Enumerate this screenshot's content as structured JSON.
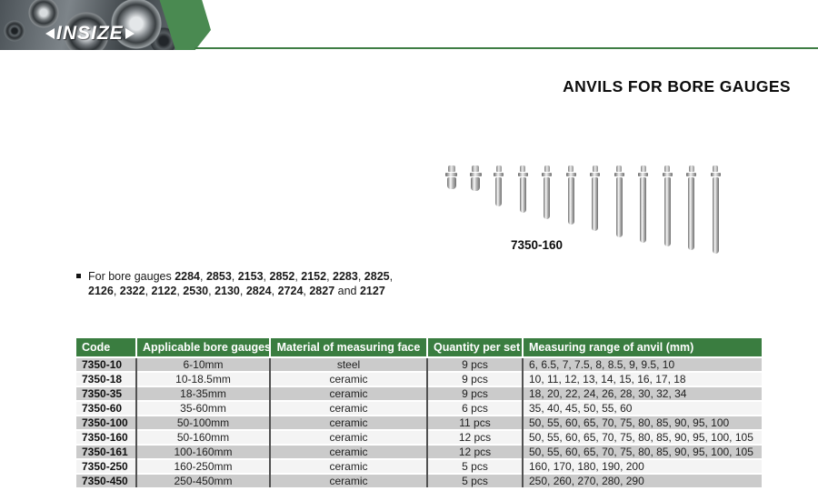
{
  "brand": {
    "logo_text": "INSIZE",
    "green_accent": "#3a7d40",
    "chevron_green": "#4a8a51"
  },
  "page": {
    "title": "ANVILS FOR BORE GAUGES"
  },
  "figure": {
    "label": "7350-160",
    "anvil_heights": [
      26,
      28,
      45,
      52,
      59,
      65,
      72,
      79,
      85,
      89,
      93,
      97
    ]
  },
  "note": {
    "prefix": "For bore gauges",
    "codes": [
      "2284",
      "2853",
      "2153",
      "2852",
      "2152",
      "2283",
      "2825",
      "2126",
      "2322",
      "2122",
      "2530",
      "2130",
      "2824",
      "2724",
      "2827"
    ],
    "conjunction": "and",
    "last_code": "2127"
  },
  "table": {
    "columns": [
      "Code",
      "Applicable bore gauges",
      "Material of measuring face",
      "Quantity per set",
      "Measuring range of anvil (mm)"
    ],
    "rows": [
      [
        "7350-10",
        "6-10mm",
        "steel",
        "9 pcs",
        "6, 6.5, 7, 7.5, 8, 8.5, 9, 9.5, 10"
      ],
      [
        "7350-18",
        "10-18.5mm",
        "ceramic",
        "9 pcs",
        "10, 11, 12, 13, 14, 15, 16, 17, 18"
      ],
      [
        "7350-35",
        "18-35mm",
        "ceramic",
        "9 pcs",
        "18, 20, 22, 24, 26, 28, 30, 32, 34"
      ],
      [
        "7350-60",
        "35-60mm",
        "ceramic",
        "6 pcs",
        "35, 40, 45, 50, 55, 60"
      ],
      [
        "7350-100",
        "50-100mm",
        "ceramic",
        "11 pcs",
        "50, 55, 60, 65, 70, 75, 80, 85, 90, 95, 100"
      ],
      [
        "7350-160",
        "50-160mm",
        "ceramic",
        "12 pcs",
        "50, 55, 60, 65, 70, 75, 80, 85, 90, 95, 100, 105"
      ],
      [
        "7350-161",
        "100-160mm",
        "ceramic",
        "12 pcs",
        "50, 55, 60, 65, 70, 75, 80, 85, 90, 95, 100, 105"
      ],
      [
        "7350-250",
        "160-250mm",
        "ceramic",
        "5 pcs",
        "160, 170, 180, 190, 200"
      ],
      [
        "7350-450",
        "250-450mm",
        "ceramic",
        "5 pcs",
        "250, 260, 270, 280, 290"
      ]
    ]
  }
}
